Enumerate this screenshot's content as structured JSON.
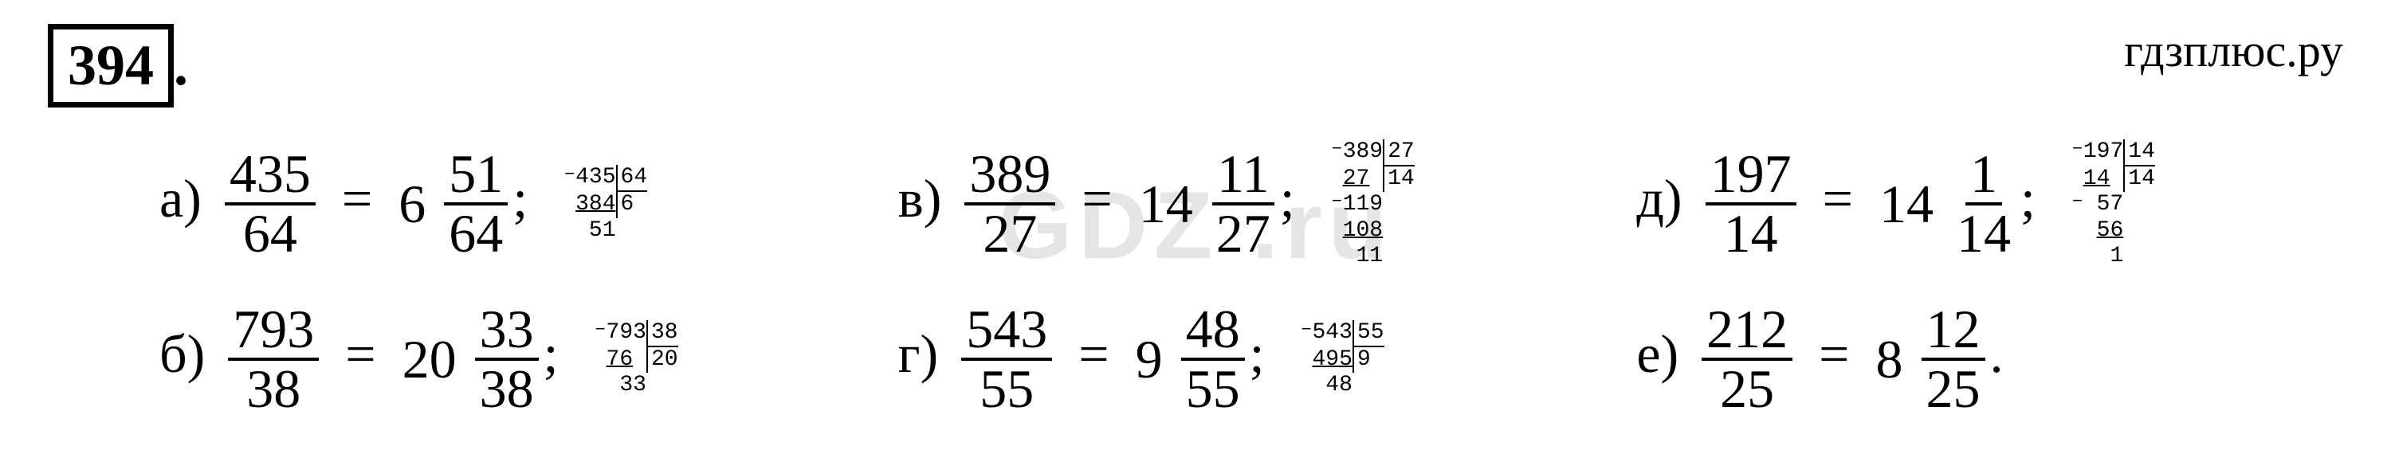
{
  "header": {
    "problem_number": "394",
    "site": "гдзплюс.ру"
  },
  "watermark": "GDZ    .ru",
  "items": {
    "a": {
      "label": "а)",
      "num": "435",
      "den": "64",
      "whole": "6",
      "rnum": "51",
      "rden": "64",
      "punct": ";",
      "division": {
        "dividend": "435",
        "divisor": "64",
        "sub1": "384",
        "quotient": "6",
        "rem1": "51"
      }
    },
    "b": {
      "label": "б)",
      "num": "793",
      "den": "38",
      "whole": "20",
      "rnum": "33",
      "rden": "38",
      "punct": ";",
      "division": {
        "dividend": "793",
        "divisor": "38",
        "sub1": "76",
        "quotient": "20",
        "rem1": "33"
      }
    },
    "v": {
      "label": "в)",
      "num": "389",
      "den": "27",
      "whole": "14",
      "rnum": "11",
      "rden": "27",
      "punct": ";",
      "division": {
        "dividend": "389",
        "divisor": "27",
        "sub1": "27",
        "quotient": "14",
        "rem1": "119",
        "sub2": "108",
        "rem2": "11"
      }
    },
    "g": {
      "label": "г)",
      "num": "543",
      "den": "55",
      "whole": "9",
      "rnum": "48",
      "rden": "55",
      "punct": ";",
      "division": {
        "dividend": "543",
        "divisor": "55",
        "sub1": "495",
        "quotient": "9",
        "rem1": "48"
      }
    },
    "d": {
      "label": "д)",
      "num": "197",
      "den": "14",
      "whole": "14",
      "rnum": "1",
      "rden": "14",
      "punct": ";",
      "division": {
        "dividend": "197",
        "divisor": "14",
        "sub1": "14",
        "quotient": "14",
        "rem1": "57",
        "sub2": "56",
        "rem2": "1"
      }
    },
    "e": {
      "label": "е)",
      "num": "212",
      "den": "25",
      "whole": "8",
      "rnum": "12",
      "rden": "25",
      "punct": "."
    }
  },
  "colors": {
    "text": "#000000",
    "background": "#ffffff",
    "watermark": "#e5e5e5"
  }
}
